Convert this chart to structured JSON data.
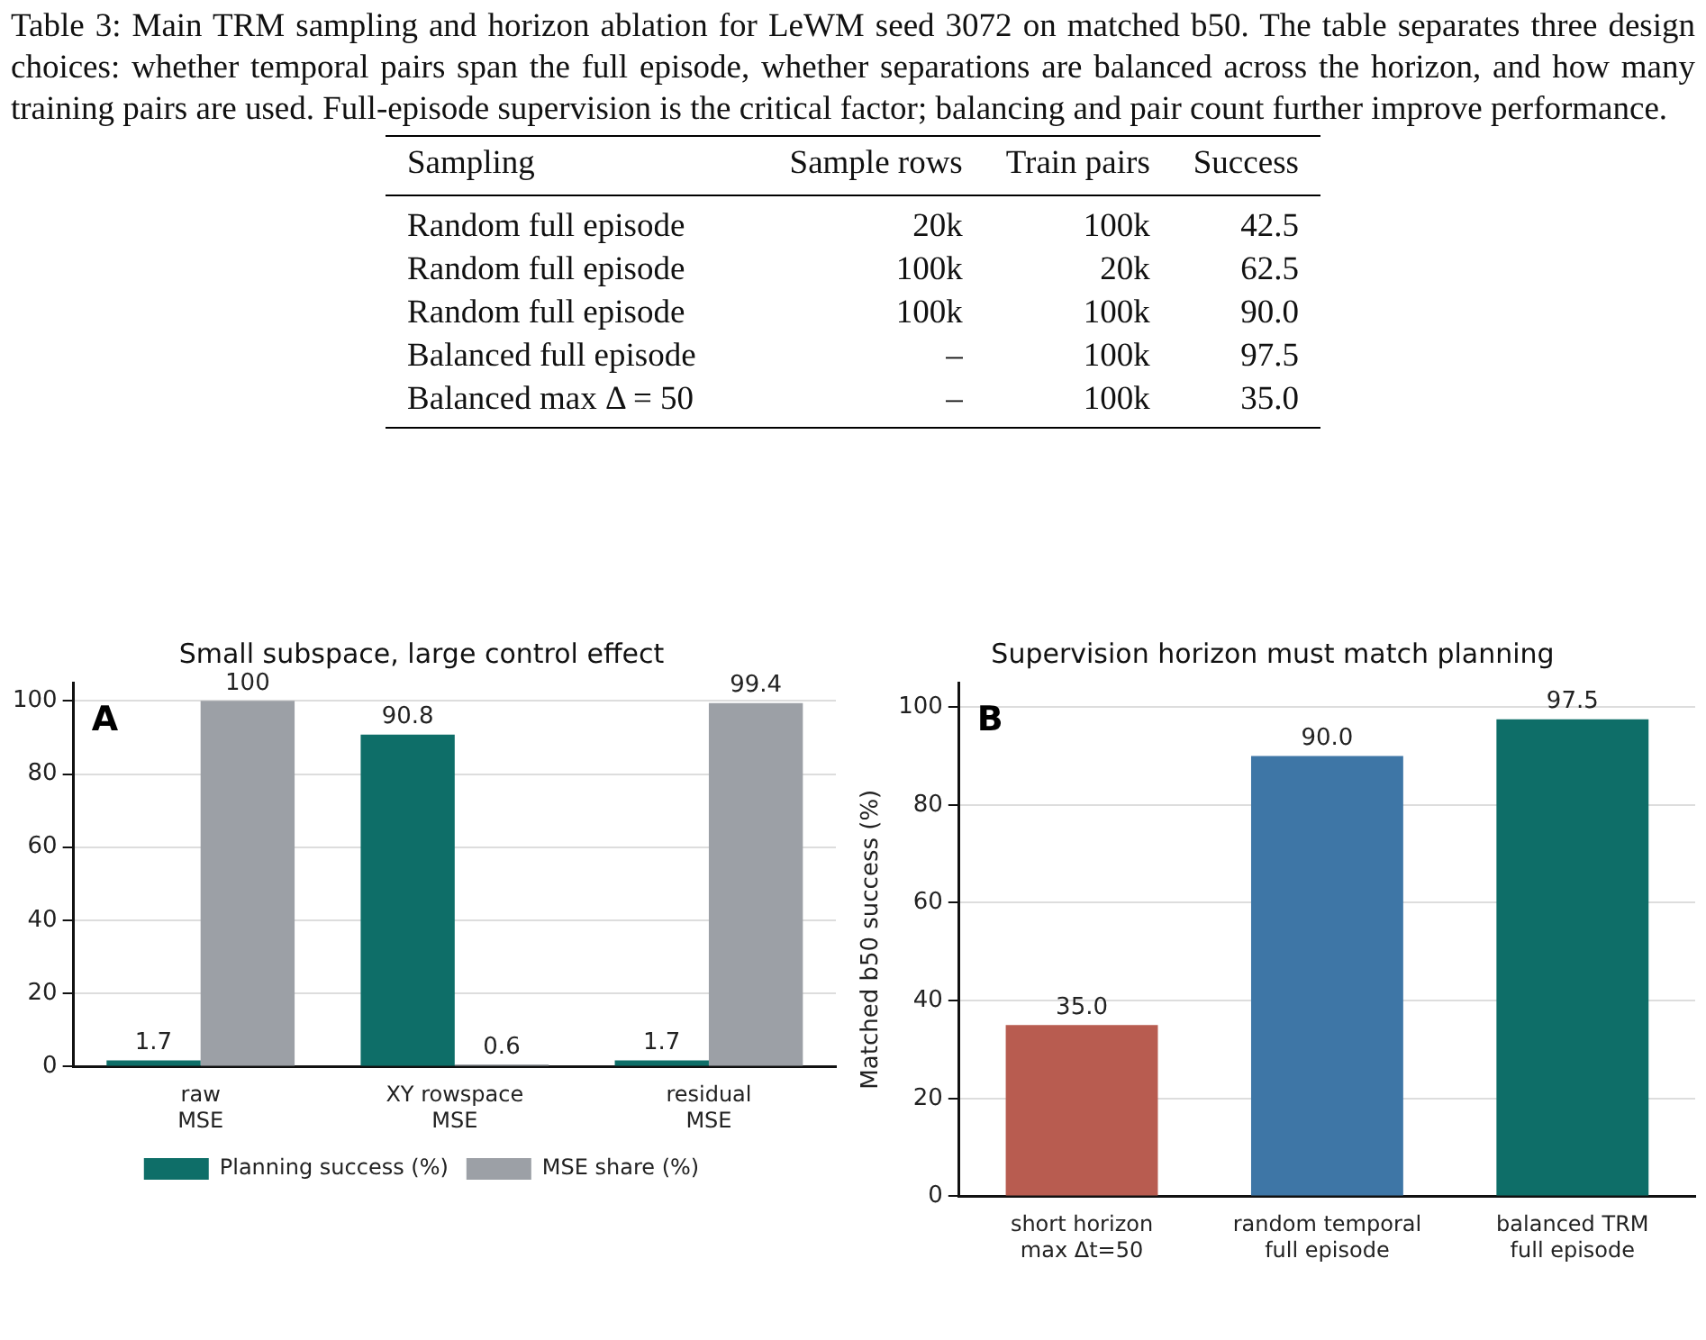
{
  "chart_data": [
    {
      "type": "other",
      "title": "Table 3: Main TRM sampling and horizon ablation for LeWM seed 3072 on matched b50. The table separates three design choices: whether temporal pairs span the full episode, whether separations are balanced across the horizon, and how many training pairs are used. Full-episode supervision is the critical factor; balancing and pair count further improve performance.",
      "categories": [
        "Sampling",
        "Sample rows",
        "Train pairs",
        "Success"
      ],
      "annotations": [
        "Random full episode",
        "20k",
        "100k",
        "42.5",
        "Random full episode",
        "100k",
        "20k",
        "62.5",
        "Random full episode",
        "100k",
        "100k",
        "90.0",
        "Balanced full episode",
        "–",
        "100k",
        "97.5",
        "Balanced max Δ = 50",
        "–",
        "100k",
        "35.0"
      ]
    },
    {
      "type": "bar",
      "title": "Small subspace, large control effect",
      "categories": [
        "raw\nMSE",
        "XY rowspace\nMSE",
        "residual\nMSE"
      ],
      "series": [
        {
          "name": "Planning success (%)",
          "color": "#0e6e68",
          "values": [
            1.7,
            90.8,
            1.7
          ]
        },
        {
          "name": "MSE share (%)",
          "color": "#9ca0a6",
          "values": [
            100,
            0.6,
            99.4
          ]
        }
      ],
      "ylim": [
        0,
        105
      ],
      "yticks": [
        0,
        20,
        40,
        60,
        80,
        100
      ],
      "grid": "y",
      "legend": "bottom",
      "data_labels": true,
      "annotations": [
        "A"
      ]
    },
    {
      "type": "bar",
      "title": "Supervision horizon must match planning",
      "ylabel": "Matched b50 success (%)",
      "categories": [
        "short horizon\nmax Δt=50",
        "random temporal\nfull episode",
        "balanced TRM\nfull episode"
      ],
      "values": [
        35,
        90,
        97.5
      ],
      "colors": [
        "#b85c50",
        "#3e76a6",
        "#0e6e68"
      ],
      "value_labels": [
        "35.0",
        "90.0",
        "97.5"
      ],
      "ylim": [
        0,
        105
      ],
      "yticks": [
        0,
        20,
        40,
        60,
        80,
        100
      ],
      "grid": "y",
      "legend": false,
      "annotations": [
        "B"
      ]
    }
  ]
}
